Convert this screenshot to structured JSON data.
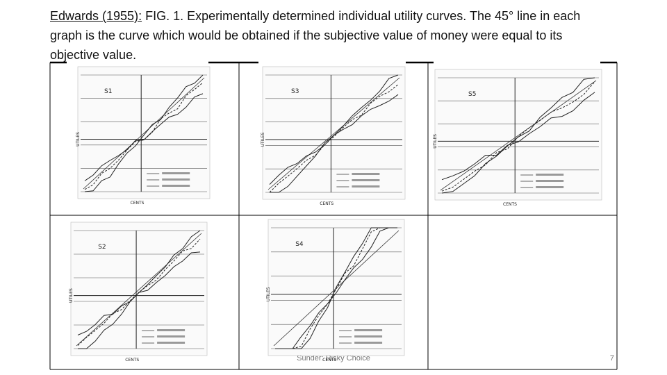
{
  "header": {
    "citation": "Edwards (1955):",
    "caption": " FIG. 1. Experimentally determined individual utility curves. The 45° line in each graph is the curve which would be obtained if the subjective value of money were equal to its objective value."
  },
  "panels": [
    {
      "label": "S1"
    },
    {
      "label": "S3"
    },
    {
      "label": "S5"
    },
    {
      "label": "S2"
    },
    {
      "label": "S4"
    }
  ],
  "axis_labels": {
    "y": "UTILES",
    "x": "CENTS"
  },
  "footer": {
    "source": "Sunder: Risky Choice",
    "page": "7"
  }
}
